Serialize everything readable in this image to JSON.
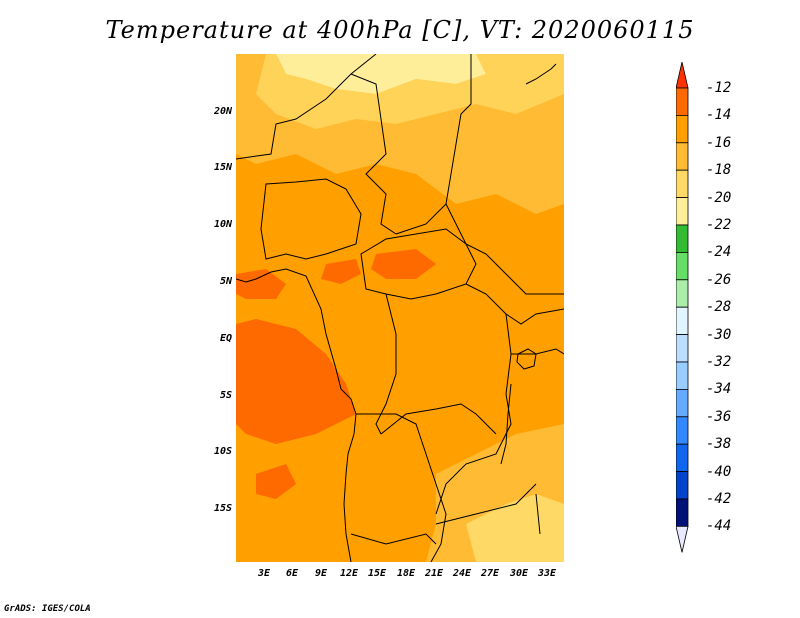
{
  "title": "Temperature at 400hPa [C], VT: 2020060115",
  "credit": "GrADS: IGES/COLA",
  "map": {
    "lat_labels": [
      "20N",
      "15N",
      "10N",
      "5N",
      "EQ",
      "5S",
      "10S",
      "15S"
    ],
    "lon_labels": [
      "3E",
      "6E",
      "9E",
      "12E",
      "15E",
      "18E",
      "21E",
      "24E",
      "27E",
      "30E",
      "33E"
    ],
    "fill_colors": {
      "minus16_to_minus14": "#ff9f00",
      "minus18_to_minus16": "#ffbb33",
      "minus20_to_minus18": "#ffd966",
      "minus22_to_minus20": "#ffee99",
      "minus14_to_minus12": "#ff6a00",
      "minus12_plus": "#ff3300"
    }
  },
  "colorbar": {
    "labels": [
      "-12",
      "-14",
      "-16",
      "-18",
      "-20",
      "-22",
      "-24",
      "-26",
      "-28",
      "-30",
      "-32",
      "-34",
      "-36",
      "-38",
      "-40",
      "-42",
      "-44"
    ],
    "colors": [
      "#ff3300",
      "#ff6a00",
      "#ff9f00",
      "#ffbb33",
      "#ffd966",
      "#ffee99",
      "#33bb33",
      "#66dd66",
      "#aaeeaa",
      "#e0f5ff",
      "#bbddff",
      "#99ccff",
      "#66aaff",
      "#3388ff",
      "#1166ee",
      "#0044cc",
      "#001177",
      "#e8e8ff"
    ]
  }
}
